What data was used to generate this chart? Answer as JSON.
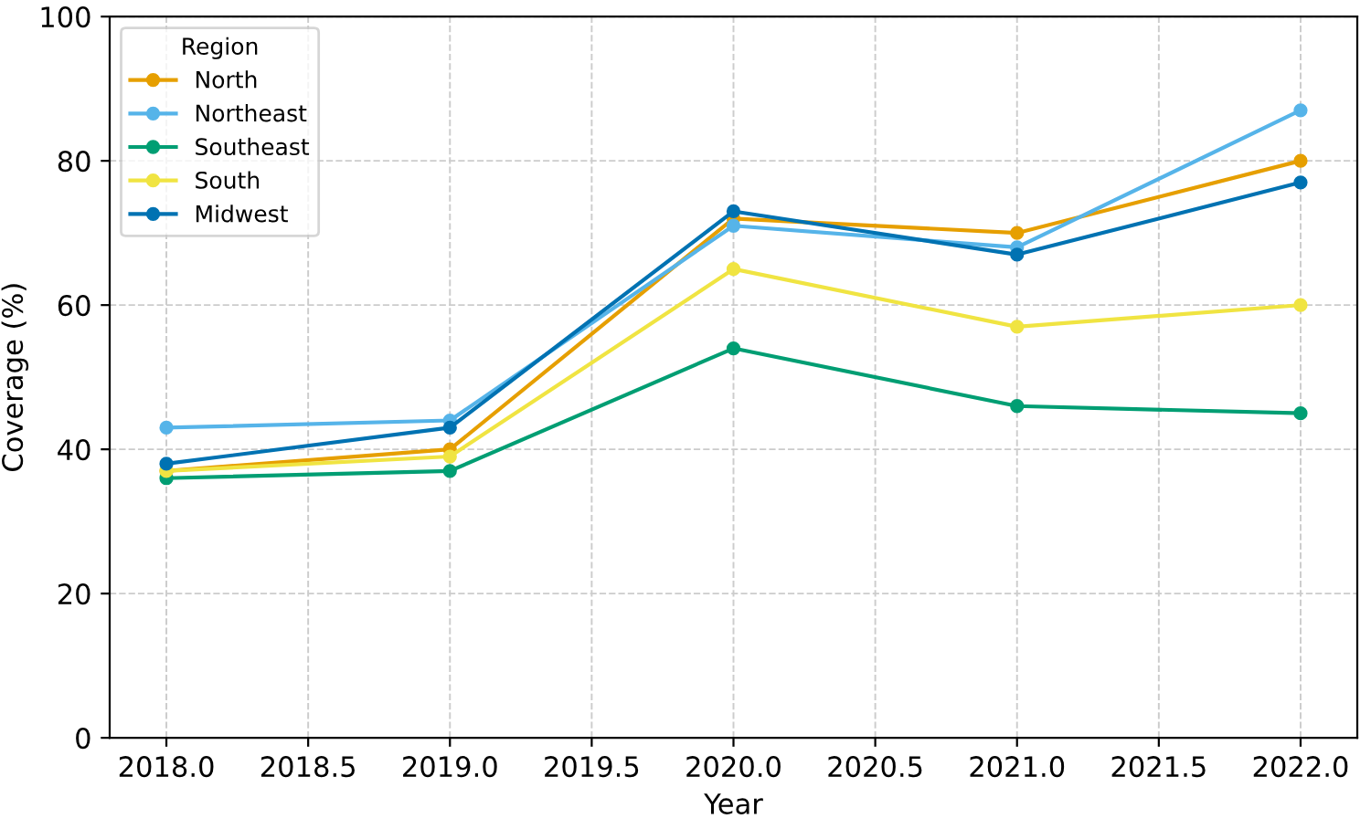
{
  "chart_data": {
    "type": "line",
    "xlabel": "Year",
    "ylabel": "Coverage (%)",
    "legend_title": "Region",
    "legend": "top left",
    "grid": true,
    "marker": "circle",
    "line_style": "solid",
    "x": [
      2018,
      2019,
      2020,
      2021,
      2022
    ],
    "xlim": [
      2017.8,
      2022.2
    ],
    "xticks": [
      {
        "value": 2018,
        "label": "2018.0"
      },
      {
        "value": 2018.5,
        "label": "2018.5"
      },
      {
        "value": 2019,
        "label": "2019.0"
      },
      {
        "value": 2019.5,
        "label": "2019.5"
      },
      {
        "value": 2020,
        "label": "2020.0"
      },
      {
        "value": 2020.5,
        "label": "2020.5"
      },
      {
        "value": 2021,
        "label": "2021.0"
      },
      {
        "value": 2021.5,
        "label": "2021.5"
      },
      {
        "value": 2022,
        "label": "2022.0"
      }
    ],
    "ylim": [
      0,
      100
    ],
    "yticks": [
      0,
      20,
      40,
      60,
      80,
      100
    ],
    "series": [
      {
        "name": "North",
        "color": "#e69f00",
        "values": [
          37,
          40,
          72,
          70,
          80
        ]
      },
      {
        "name": "Northeast",
        "color": "#56b4e9",
        "values": [
          43,
          44,
          71,
          68,
          87
        ]
      },
      {
        "name": "Southeast",
        "color": "#009e73",
        "values": [
          36,
          37,
          54,
          46,
          45
        ]
      },
      {
        "name": "South",
        "color": "#f0e442",
        "values": [
          37,
          39,
          65,
          57,
          60
        ]
      },
      {
        "name": "Midwest",
        "color": "#0072b2",
        "values": [
          38,
          43,
          73,
          67,
          77
        ]
      }
    ]
  }
}
